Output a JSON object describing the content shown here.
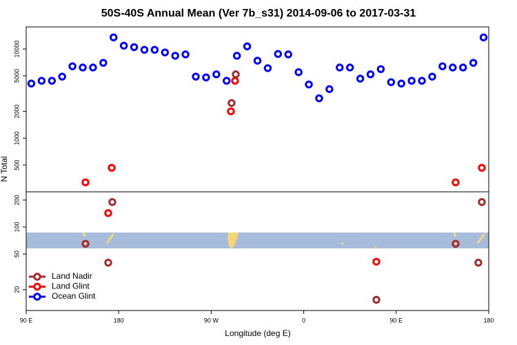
{
  "chart_data": [
    {
      "type": "scatter",
      "title": "50S-40S Annual Mean (Ver 7b_s31)   2014-09-06 to 2017-03-31",
      "y_label": "N Total",
      "log_y": true,
      "xlim": [
        90,
        540
      ],
      "ylim": [
        250,
        17700
      ],
      "yticks": [
        500,
        1000,
        2000,
        5000,
        10000
      ],
      "series": [
        {
          "color": "#0000ff",
          "x": [
            95,
            105,
            115,
            125,
            135,
            145,
            155,
            165,
            175,
            185,
            195,
            205,
            215,
            225,
            235,
            245,
            255,
            265,
            275,
            285,
            295,
            305,
            315,
            325,
            335,
            345,
            355,
            365,
            375,
            385,
            395,
            405,
            415,
            425,
            435,
            445,
            455,
            465,
            475,
            485,
            495,
            505,
            515,
            525,
            535
          ],
          "values": [
            4100,
            4400,
            4400,
            4900,
            6400,
            6200,
            6200,
            7000,
            13500,
            10900,
            10500,
            9800,
            9800,
            9150,
            8400,
            8700,
            4900,
            4800,
            5200,
            4400,
            8400,
            10700,
            7400,
            6100,
            8800,
            8700,
            5500,
            4000,
            2800,
            3550,
            6200,
            6200,
            4650,
            5200,
            5950,
            4250,
            4100,
            4400,
            4400,
            4900,
            6400,
            6200,
            6200,
            7000,
            13500
          ]
        },
        {
          "color": "#ff0000",
          "x": [
            147.7,
            173.2,
            293.2,
            289.2,
            507.8,
            533.3
          ],
          "values": [
            319,
            465,
            4400,
            2000,
            319,
            465
          ]
        },
        {
          "color": "#a52a2a",
          "x": [
            289.8,
            293.9
          ],
          "values": [
            2480,
            5200
          ]
        }
      ]
    },
    {
      "type": "scatter",
      "x_label": "Longitude (deg E)",
      "log_y": true,
      "legend": "lower left",
      "xlim": [
        90,
        540
      ],
      "ylim": [
        11.7,
        247
      ],
      "yticks": [
        20,
        50,
        100,
        200
      ],
      "xticks": [
        {
          "value": 90,
          "label": "90 E"
        },
        180,
        {
          "value": 270,
          "label": "90 W"
        },
        {
          "value": 360,
          "label": "0"
        },
        {
          "value": 450,
          "label": "90 E"
        },
        {
          "value": 540,
          "label": "180"
        }
      ],
      "series": [
        {
          "name": "Land Nadir",
          "color": "#a52a2a",
          "x": [
            173.8,
            147.7,
            169.8,
            430.7,
            507.8,
            533.3,
            529.9
          ],
          "values": [
            190,
            65,
            40,
            15.4,
            65,
            190,
            40
          ]
        },
        {
          "name": "Land Glint",
          "color": "#ff0000",
          "x": [
            169.8,
            430.7
          ],
          "values": [
            143,
            41
          ]
        },
        {
          "name": "Ocean Glint",
          "color": "#0000ff",
          "x": [],
          "values": []
        }
      ]
    }
  ]
}
